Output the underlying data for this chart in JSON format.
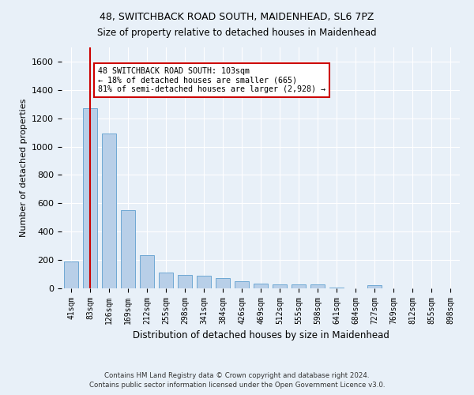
{
  "title1": "48, SWITCHBACK ROAD SOUTH, MAIDENHEAD, SL6 7PZ",
  "title2": "Size of property relative to detached houses in Maidenhead",
  "xlabel": "Distribution of detached houses by size in Maidenhead",
  "ylabel": "Number of detached properties",
  "bar_labels": [
    "41sqm",
    "83sqm",
    "126sqm",
    "169sqm",
    "212sqm",
    "255sqm",
    "298sqm",
    "341sqm",
    "384sqm",
    "426sqm",
    "469sqm",
    "512sqm",
    "555sqm",
    "598sqm",
    "641sqm",
    "684sqm",
    "727sqm",
    "769sqm",
    "812sqm",
    "855sqm",
    "898sqm"
  ],
  "bar_values": [
    190,
    1270,
    1090,
    550,
    235,
    110,
    95,
    90,
    75,
    50,
    35,
    30,
    30,
    30,
    5,
    0,
    20,
    0,
    0,
    0,
    0
  ],
  "bar_color": "#b8cfe8",
  "bar_edge_color": "#6fa8d4",
  "ylim": [
    0,
    1700
  ],
  "yticks": [
    0,
    200,
    400,
    600,
    800,
    1000,
    1200,
    1400,
    1600
  ],
  "vline_x_index": 1,
  "vline_color": "#cc0000",
  "annotation_line1": "48 SWITCHBACK ROAD SOUTH: 103sqm",
  "annotation_line2": "← 18% of detached houses are smaller (665)",
  "annotation_line3": "81% of semi-detached houses are larger (2,928) →",
  "annotation_box_color": "#cc0000",
  "footer1": "Contains HM Land Registry data © Crown copyright and database right 2024.",
  "footer2": "Contains public sector information licensed under the Open Government Licence v3.0.",
  "bg_color": "#e8f0f8",
  "grid_color": "#ffffff",
  "bar_width": 0.75
}
